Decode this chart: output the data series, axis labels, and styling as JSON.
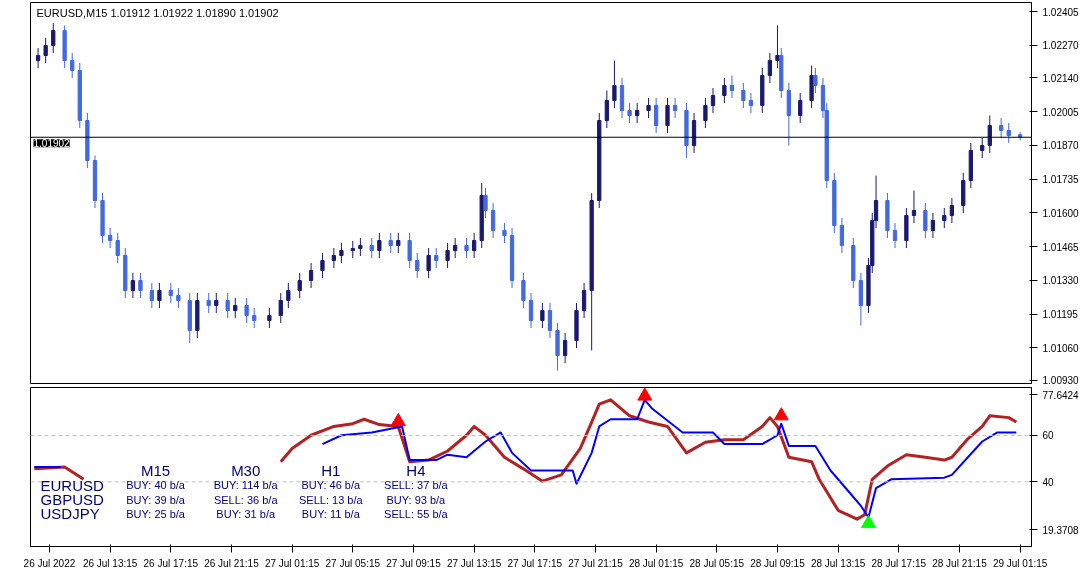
{
  "chart_data": [
    {
      "type": "candlestick",
      "title": "EURUSD,M15  1.01912 1.01922 1.01890 1.01902",
      "tick_labels": "y",
      "grid": false,
      "xlim": [
        "2022-07-26T08:00",
        "2022-07-29T02:00"
      ],
      "ylim": [
        1.00917,
        1.02441
      ],
      "yticks": [
        {
          "value": 1.02405,
          "label": "1.02405"
        },
        {
          "value": 1.0227,
          "label": "1.02270"
        },
        {
          "value": 1.0214,
          "label": "1.02140"
        },
        {
          "value": 1.02005,
          "label": "1.02005"
        },
        {
          "value": 1.0187,
          "label": "1.01870"
        },
        {
          "value": 1.01735,
          "label": "1.01735"
        },
        {
          "value": 1.016,
          "label": "1.01600"
        },
        {
          "value": 1.01465,
          "label": "1.01465"
        },
        {
          "value": 1.0133,
          "label": "1.01330"
        },
        {
          "value": 1.01195,
          "label": "1.01195"
        },
        {
          "value": 1.0106,
          "label": "1.01060"
        },
        {
          "value": 1.0093,
          "label": "1.00930"
        }
      ],
      "ref_lines": [
        {
          "axis": "y",
          "value": 1.01902,
          "label": "1.01902",
          "color": "#000000"
        }
      ],
      "x": [
        "2022-07-26T08:30",
        "2022-07-26T09:00",
        "2022-07-26T09:30",
        "2022-07-26T10:15",
        "2022-07-26T10:45",
        "2022-07-26T11:15",
        "2022-07-26T11:45",
        "2022-07-26T12:15",
        "2022-07-26T12:45",
        "2022-07-26T13:15",
        "2022-07-26T13:45",
        "2022-07-26T14:15",
        "2022-07-26T14:45",
        "2022-07-26T15:15",
        "2022-07-26T16:00",
        "2022-07-26T16:30",
        "2022-07-26T17:15",
        "2022-07-26T17:45",
        "2022-07-26T18:30",
        "2022-07-26T19:00",
        "2022-07-26T19:45",
        "2022-07-26T20:15",
        "2022-07-26T21:00",
        "2022-07-26T21:30",
        "2022-07-26T22:15",
        "2022-07-26T22:45",
        "2022-07-26T23:45",
        "2022-07-27T00:30",
        "2022-07-27T01:00",
        "2022-07-27T01:45",
        "2022-07-27T02:30",
        "2022-07-27T03:15",
        "2022-07-27T04:00",
        "2022-07-27T04:30",
        "2022-07-27T05:15",
        "2022-07-27T05:45",
        "2022-07-27T06:30",
        "2022-07-27T07:00",
        "2022-07-27T07:45",
        "2022-07-27T08:15",
        "2022-07-27T09:00",
        "2022-07-27T09:30",
        "2022-07-27T10:15",
        "2022-07-27T10:45",
        "2022-07-27T11:30",
        "2022-07-27T12:00",
        "2022-07-27T12:45",
        "2022-07-27T13:15",
        "2022-07-27T13:45",
        "2022-07-27T14:00",
        "2022-07-27T14:30",
        "2022-07-27T15:15",
        "2022-07-27T15:45",
        "2022-07-27T16:30",
        "2022-07-27T17:00",
        "2022-07-27T17:45",
        "2022-07-27T18:15",
        "2022-07-27T18:45",
        "2022-07-27T19:15",
        "2022-07-27T20:00",
        "2022-07-27T20:30",
        "2022-07-27T21:00",
        "2022-07-27T21:30",
        "2022-07-27T22:00",
        "2022-07-27T22:30",
        "2022-07-27T23:00",
        "2022-07-27T23:30",
        "2022-07-28T00:00",
        "2022-07-28T00:45",
        "2022-07-28T01:15",
        "2022-07-28T02:00",
        "2022-07-28T02:30",
        "2022-07-28T03:15",
        "2022-07-28T03:45",
        "2022-07-28T04:30",
        "2022-07-28T05:00",
        "2022-07-28T05:45",
        "2022-07-28T06:15",
        "2022-07-28T07:00",
        "2022-07-28T07:30",
        "2022-07-28T08:15",
        "2022-07-28T08:45",
        "2022-07-28T09:15",
        "2022-07-28T09:30",
        "2022-07-28T10:00",
        "2022-07-28T10:45",
        "2022-07-28T11:30",
        "2022-07-28T11:45",
        "2022-07-28T12:15",
        "2022-07-28T12:30",
        "2022-07-28T13:00",
        "2022-07-28T13:30",
        "2022-07-28T14:15",
        "2022-07-28T14:45",
        "2022-07-28T15:15",
        "2022-07-28T15:30",
        "2022-07-28T15:45",
        "2022-07-28T16:30",
        "2022-07-28T17:00",
        "2022-07-28T17:45",
        "2022-07-28T18:15",
        "2022-07-28T19:00",
        "2022-07-28T19:30",
        "2022-07-28T20:15",
        "2022-07-28T20:45",
        "2022-07-28T21:30",
        "2022-07-28T22:00",
        "2022-07-28T22:45",
        "2022-07-28T23:15",
        "2022-07-29T00:00",
        "2022-07-29T00:30",
        "2022-07-29T01:15"
      ],
      "ohlc": [
        [
          1.02209,
          1.02259,
          1.02179,
          1.02229
        ],
        [
          1.02229,
          1.02299,
          1.02199,
          1.02269
        ],
        [
          1.02269,
          1.02359,
          1.02239,
          1.02329
        ],
        [
          1.02329,
          1.02349,
          1.02179,
          1.02209
        ],
        [
          1.02209,
          1.02239,
          1.02139,
          1.02169
        ],
        [
          1.02169,
          1.02199,
          1.01939,
          1.01969
        ],
        [
          1.01969,
          1.01999,
          1.01779,
          1.01809
        ],
        [
          1.01809,
          1.01829,
          1.01619,
          1.01649
        ],
        [
          1.01649,
          1.01679,
          1.01479,
          1.01509
        ],
        [
          1.01509,
          1.01539,
          1.01459,
          1.01489
        ],
        [
          1.01489,
          1.01519,
          1.01399,
          1.01429
        ],
        [
          1.01429,
          1.01459,
          1.01259,
          1.01289
        ],
        [
          1.01289,
          1.01359,
          1.01259,
          1.01329
        ],
        [
          1.01329,
          1.01359,
          1.01259,
          1.01289
        ],
        [
          1.01289,
          1.01319,
          1.01219,
          1.01249
        ],
        [
          1.01249,
          1.01319,
          1.01219,
          1.01289
        ],
        [
          1.01289,
          1.01319,
          1.01239,
          1.01269
        ],
        [
          1.01269,
          1.01299,
          1.01219,
          1.01249
        ],
        [
          1.01249,
          1.01279,
          1.01079,
          1.01129
        ],
        [
          1.01129,
          1.01279,
          1.01099,
          1.01249
        ],
        [
          1.01249,
          1.01279,
          1.01199,
          1.01229
        ],
        [
          1.01229,
          1.01279,
          1.01199,
          1.01249
        ],
        [
          1.01249,
          1.01279,
          1.01179,
          1.01209
        ],
        [
          1.01209,
          1.01259,
          1.01179,
          1.01229
        ],
        [
          1.01229,
          1.01259,
          1.01159,
          1.01189
        ],
        [
          1.01189,
          1.01219,
          1.01139,
          1.01169
        ],
        [
          1.01169,
          1.01219,
          1.01139,
          1.01189
        ],
        [
          1.01189,
          1.01279,
          1.01159,
          1.01249
        ],
        [
          1.01249,
          1.01319,
          1.01219,
          1.01289
        ],
        [
          1.01289,
          1.01359,
          1.01259,
          1.01329
        ],
        [
          1.01329,
          1.01399,
          1.01299,
          1.01369
        ],
        [
          1.01369,
          1.01439,
          1.01339,
          1.01409
        ],
        [
          1.01409,
          1.01459,
          1.01379,
          1.01429
        ],
        [
          1.01429,
          1.01479,
          1.01399,
          1.01449
        ],
        [
          1.01449,
          1.01487,
          1.01419,
          1.01457
        ],
        [
          1.01457,
          1.01499,
          1.01427,
          1.01469
        ],
        [
          1.01469,
          1.01499,
          1.01419,
          1.01449
        ],
        [
          1.01449,
          1.01519,
          1.01419,
          1.01489
        ],
        [
          1.01489,
          1.01519,
          1.01439,
          1.01469
        ],
        [
          1.01469,
          1.01519,
          1.01439,
          1.01489
        ],
        [
          1.01489,
          1.01519,
          1.01379,
          1.01409
        ],
        [
          1.01409,
          1.01439,
          1.01339,
          1.01369
        ],
        [
          1.01369,
          1.01459,
          1.01339,
          1.01429
        ],
        [
          1.01429,
          1.01459,
          1.01379,
          1.01409
        ],
        [
          1.01409,
          1.01479,
          1.01379,
          1.01449
        ],
        [
          1.01449,
          1.01499,
          1.01419,
          1.01469
        ],
        [
          1.01469,
          1.01499,
          1.01419,
          1.01449
        ],
        [
          1.01449,
          1.01519,
          1.01419,
          1.01489
        ],
        [
          1.01489,
          1.01719,
          1.01459,
          1.01669
        ],
        [
          1.01669,
          1.01699,
          1.01579,
          1.01609
        ],
        [
          1.01609,
          1.01639,
          1.01499,
          1.01529
        ],
        [
          1.01529,
          1.01559,
          1.01479,
          1.01509
        ],
        [
          1.01509,
          1.01539,
          1.01299,
          1.01329
        ],
        [
          1.01329,
          1.01359,
          1.01219,
          1.01249
        ],
        [
          1.01249,
          1.01279,
          1.01139,
          1.01169
        ],
        [
          1.01169,
          1.01239,
          1.01139,
          1.01209
        ],
        [
          1.01209,
          1.01239,
          1.01099,
          1.01129
        ],
        [
          1.01129,
          1.01159,
          1.00969,
          1.01029
        ],
        [
          1.01029,
          1.01119,
          1.00999,
          1.01089
        ],
        [
          1.01089,
          1.01239,
          1.01059,
          1.01209
        ],
        [
          1.01209,
          1.01319,
          1.01179,
          1.01289
        ],
        [
          1.01289,
          1.01679,
          1.01049,
          1.01649
        ],
        [
          1.01649,
          1.01999,
          1.01619,
          1.01969
        ],
        [
          1.01969,
          1.02089,
          1.01939,
          1.02049
        ],
        [
          1.02049,
          1.02209,
          1.02019,
          1.02109
        ],
        [
          1.02109,
          1.02139,
          1.01979,
          1.02009
        ],
        [
          1.02009,
          1.02039,
          1.01959,
          1.01989
        ],
        [
          1.01989,
          1.02039,
          1.01959,
          1.02009
        ],
        [
          1.02009,
          1.02059,
          1.01979,
          1.02029
        ],
        [
          1.02029,
          1.02059,
          1.01919,
          1.01949
        ],
        [
          1.01949,
          1.02059,
          1.01919,
          1.02029
        ],
        [
          1.02029,
          1.02059,
          1.01979,
          1.02009
        ],
        [
          1.02009,
          1.02039,
          1.01819,
          1.01869
        ],
        [
          1.01869,
          1.01999,
          1.01839,
          1.01969
        ],
        [
          1.01969,
          1.02059,
          1.01939,
          1.02029
        ],
        [
          1.02029,
          1.02099,
          1.01999,
          1.02069
        ],
        [
          1.02069,
          1.02139,
          1.02039,
          1.02109
        ],
        [
          1.02109,
          1.02149,
          1.02059,
          1.02089
        ],
        [
          1.02089,
          1.02119,
          1.02019,
          1.02049
        ],
        [
          1.02049,
          1.02079,
          1.01999,
          1.02029
        ],
        [
          1.02029,
          1.02179,
          1.01999,
          1.02149
        ],
        [
          1.02149,
          1.02239,
          1.02119,
          1.02209
        ],
        [
          1.02209,
          1.02349,
          1.02179,
          1.02229
        ],
        [
          1.02229,
          1.02259,
          1.02059,
          1.02089
        ],
        [
          1.02089,
          1.02119,
          1.01869,
          1.01989
        ],
        [
          1.01989,
          1.02079,
          1.01959,
          1.02049
        ],
        [
          1.02049,
          1.02189,
          1.02019,
          1.02149
        ],
        [
          1.02149,
          1.02179,
          1.02079,
          1.02109
        ],
        [
          1.02109,
          1.02139,
          1.01979,
          1.02009
        ],
        [
          1.02009,
          1.02039,
          1.01699,
          1.01729
        ],
        [
          1.01729,
          1.01759,
          1.01519,
          1.01549
        ],
        [
          1.01549,
          1.01579,
          1.01439,
          1.01469
        ],
        [
          1.01469,
          1.01499,
          1.01299,
          1.01329
        ],
        [
          1.01329,
          1.01359,
          1.01149,
          1.01229
        ],
        [
          1.01229,
          1.01419,
          1.01199,
          1.01389
        ],
        [
          1.01389,
          1.01599,
          1.01359,
          1.01569
        ],
        [
          1.01569,
          1.01749,
          1.01539,
          1.01649
        ],
        [
          1.01649,
          1.01679,
          1.01499,
          1.01529
        ],
        [
          1.01529,
          1.01559,
          1.01459,
          1.01489
        ],
        [
          1.01489,
          1.01619,
          1.01459,
          1.01589
        ],
        [
          1.01589,
          1.01689,
          1.01559,
          1.01609
        ],
        [
          1.01609,
          1.01639,
          1.01499,
          1.01529
        ],
        [
          1.01529,
          1.01599,
          1.01499,
          1.01569
        ],
        [
          1.01569,
          1.01619,
          1.01539,
          1.01589
        ],
        [
          1.01589,
          1.01659,
          1.01559,
          1.01629
        ],
        [
          1.01629,
          1.01759,
          1.01599,
          1.01729
        ],
        [
          1.01729,
          1.01879,
          1.01699,
          1.01849
        ],
        [
          1.01849,
          1.01899,
          1.01819,
          1.01869
        ],
        [
          1.01869,
          1.01989,
          1.01839,
          1.01949
        ],
        [
          1.01949,
          1.01979,
          1.01899,
          1.01929
        ],
        [
          1.01929,
          1.01959,
          1.01879,
          1.01909
        ],
        [
          1.01912,
          1.01922,
          1.0189,
          1.01902
        ]
      ]
    },
    {
      "type": "line",
      "grid": false,
      "line_style": "solid",
      "xlim": [
        "2022-07-26T08:00",
        "2022-07-29T02:00"
      ],
      "ylim": [
        12.1,
        80.7
      ],
      "xticks": [
        {
          "value": "2022-07-26T09:15",
          "label": "26 Jul 2022"
        },
        {
          "value": "2022-07-26T13:15",
          "label": "26 Jul 13:15"
        },
        {
          "value": "2022-07-26T17:15",
          "label": "26 Jul 17:15"
        },
        {
          "value": "2022-07-26T21:15",
          "label": "26 Jul 21:15"
        },
        {
          "value": "2022-07-27T01:15",
          "label": "27 Jul 01:15"
        },
        {
          "value": "2022-07-27T05:15",
          "label": "27 Jul 05:15"
        },
        {
          "value": "2022-07-27T09:15",
          "label": "27 Jul 09:15"
        },
        {
          "value": "2022-07-27T13:15",
          "label": "27 Jul 13:15"
        },
        {
          "value": "2022-07-27T17:15",
          "label": "27 Jul 17:15"
        },
        {
          "value": "2022-07-27T21:15",
          "label": "27 Jul 21:15"
        },
        {
          "value": "2022-07-28T01:15",
          "label": "28 Jul 01:15"
        },
        {
          "value": "2022-07-28T05:15",
          "label": "28 Jul 05:15"
        },
        {
          "value": "2022-07-28T09:15",
          "label": "28 Jul 09:15"
        },
        {
          "value": "2022-07-28T13:15",
          "label": "28 Jul 13:15"
        },
        {
          "value": "2022-07-28T17:15",
          "label": "28 Jul 17:15"
        },
        {
          "value": "2022-07-28T21:15",
          "label": "28 Jul 21:15"
        },
        {
          "value": "2022-07-29T01:15",
          "label": "29 Jul 01:15"
        }
      ],
      "yticks": [
        77.6424,
        60,
        40,
        19.3708
      ],
      "ref_lines": [
        {
          "axis": "y",
          "value": 60,
          "color": "#c0c0c0",
          "line_style": "dashed"
        },
        {
          "axis": "y",
          "value": 40,
          "color": "#c0c0c0",
          "line_style": "dashed"
        }
      ],
      "series": [
        {
          "type": "line",
          "color": "#b22222",
          "x": [
            "2022-07-26T08:15",
            "2022-07-26T10:15",
            "2022-07-26T11:30",
            "2022-07-26T18:00",
            "2022-07-27T00:30",
            "2022-07-27T01:15",
            "2022-07-27T02:30",
            "2022-07-27T04:00",
            "2022-07-27T05:15",
            "2022-07-27T06:00",
            "2022-07-27T07:00",
            "2022-07-27T08:15",
            "2022-07-27T09:00",
            "2022-07-27T10:15",
            "2022-07-27T11:30",
            "2022-07-27T12:45",
            "2022-07-27T13:15",
            "2022-07-27T14:00",
            "2022-07-27T15:15",
            "2022-07-27T16:30",
            "2022-07-27T17:45",
            "2022-07-27T19:00",
            "2022-07-27T20:15",
            "2022-07-27T21:00",
            "2022-07-27T21:30",
            "2022-07-27T22:15",
            "2022-07-27T23:30",
            "2022-07-28T00:45",
            "2022-07-28T02:00",
            "2022-07-28T03:15",
            "2022-07-28T04:30",
            "2022-07-28T05:45",
            "2022-07-28T07:00",
            "2022-07-28T08:15",
            "2022-07-28T08:45",
            "2022-07-28T09:15",
            "2022-07-28T10:00",
            "2022-07-28T11:30",
            "2022-07-28T12:00",
            "2022-07-28T13:15",
            "2022-07-28T14:30",
            "2022-07-28T15:00",
            "2022-07-28T15:30",
            "2022-07-28T16:30",
            "2022-07-28T17:45",
            "2022-07-28T19:00",
            "2022-07-28T20:15",
            "2022-07-28T20:45",
            "2022-07-28T21:45",
            "2022-07-28T22:45",
            "2022-07-28T23:15",
            "2022-07-29T00:30",
            "2022-07-29T01:00"
          ],
          "values": [
            45.6,
            46.4,
            41.1,
            null,
            48.7,
            54.4,
            60.1,
            63.9,
            65.1,
            67.0,
            64.7,
            63.9,
            48.7,
            49.4,
            53.3,
            60.1,
            63.9,
            60.1,
            50.6,
            45.6,
            40.3,
            43.0,
            54.4,
            65.8,
            73.5,
            75.4,
            68.5,
            65.8,
            63.9,
            52.5,
            57.1,
            58.2,
            58.2,
            63.9,
            67.7,
            63.9,
            50.6,
            48.7,
            41.1,
            27.7,
            23.9,
            25.8,
            41.1,
            46.8,
            51.7,
            50.6,
            49.4,
            50.6,
            58.2,
            63.9,
            68.5,
            67.7,
            65.8
          ]
        },
        {
          "type": "line",
          "color": "#0000ff",
          "x": [
            "2022-07-26T08:15",
            "2022-07-26T10:00",
            "2022-07-26T18:00",
            "2022-07-27T03:15",
            "2022-07-27T04:30",
            "2022-07-27T06:30",
            "2022-07-27T08:30",
            "2022-07-27T09:00",
            "2022-07-27T10:45",
            "2022-07-27T11:30",
            "2022-07-27T12:45",
            "2022-07-27T14:00",
            "2022-07-27T15:00",
            "2022-07-27T15:45",
            "2022-07-27T17:00",
            "2022-07-27T19:45",
            "2022-07-27T20:00",
            "2022-07-27T21:00",
            "2022-07-27T21:30",
            "2022-07-27T22:15",
            "2022-07-28T00:00",
            "2022-07-28T00:30",
            "2022-07-28T01:00",
            "2022-07-28T03:00",
            "2022-07-28T05:00",
            "2022-07-28T05:45",
            "2022-07-28T08:15",
            "2022-07-28T09:15",
            "2022-07-28T09:30",
            "2022-07-28T10:00",
            "2022-07-28T11:45",
            "2022-07-28T12:45",
            "2022-07-28T14:00",
            "2022-07-28T14:45",
            "2022-07-28T15:15",
            "2022-07-28T15:45",
            "2022-07-28T16:45",
            "2022-07-28T20:15",
            "2022-07-28T20:45",
            "2022-07-28T22:45",
            "2022-07-28T23:45",
            "2022-07-29T01:00"
          ],
          "values": [
            46.4,
            46.4,
            null,
            56.3,
            60.1,
            61.3,
            63.9,
            49.4,
            49.4,
            51.7,
            50.6,
            57.4,
            61.3,
            52.5,
            44.9,
            44.9,
            39.2,
            52.5,
            63.9,
            67.0,
            67.0,
            75.4,
            71.5,
            61.3,
            61.3,
            56.3,
            56.3,
            60.1,
            65.1,
            55.5,
            55.5,
            44.9,
            35.4,
            29.6,
            24.7,
            37.3,
            41.1,
            41.8,
            43.0,
            57.4,
            61.3,
            61.3
          ]
        },
        {
          "type": "scatter",
          "marker": "triangle",
          "color": "#ff0000",
          "x": [
            "2022-07-27T08:15",
            "2022-07-28T00:30",
            "2022-07-28T09:30"
          ],
          "values": [
            66.0,
            77.0,
            68.5
          ]
        },
        {
          "type": "scatter",
          "marker": "triangle",
          "color": "#00ff00",
          "x": [
            "2022-07-28T15:15"
          ],
          "values": [
            22.0
          ]
        }
      ],
      "annotations": [
        "M15",
        "M30",
        "H1",
        "H4",
        "EURUSD",
        "BUY: 40 b/a",
        "BUY: 114 b/a",
        "BUY: 46 b/a",
        "SELL: 37 b/a",
        "GBPUSD",
        "BUY: 39 b/a",
        "SELL: 36 b/a",
        "SELL: 13 b/a",
        "BUY: 93 b/a",
        "USDJPY",
        "BUY: 25 b/a",
        "BUY: 31 b/a",
        "BUY: 11 b/a",
        "SELL: 55 b/a"
      ]
    }
  ]
}
